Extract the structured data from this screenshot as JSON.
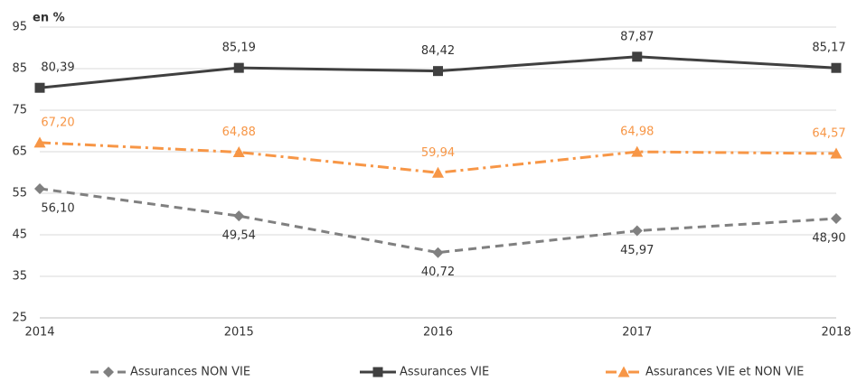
{
  "chart_data": {
    "type": "line",
    "ylabel": "en %",
    "categories": [
      "2014",
      "2015",
      "2016",
      "2017",
      "2018"
    ],
    "ylim": [
      25,
      95
    ],
    "yticks": [
      25,
      35,
      45,
      55,
      65,
      75,
      85,
      95
    ],
    "grid": true,
    "series": [
      {
        "name": "Assurances NON VIE",
        "color": "#808080",
        "dash": "dashed",
        "marker": "diamond",
        "values": [
          56.1,
          49.54,
          40.72,
          45.97,
          48.9
        ],
        "value_labels": [
          "56,10",
          "49,54",
          "40,72",
          "45,97",
          "48,90"
        ]
      },
      {
        "name": "Assurances VIE",
        "color": "#404040",
        "dash": "solid",
        "marker": "square",
        "values": [
          80.39,
          85.19,
          84.42,
          87.87,
          85.17
        ],
        "value_labels": [
          "80,39",
          "85,19",
          "84,42",
          "87,87",
          "85,17"
        ]
      },
      {
        "name": "Assurances VIE et NON VIE",
        "color": "#f79646",
        "dash": "dashdot",
        "marker": "triangle",
        "values": [
          67.2,
          64.88,
          59.94,
          64.98,
          64.57
        ],
        "value_labels": [
          "67,20",
          "64,88",
          "59,94",
          "64,98",
          "64,57"
        ]
      }
    ]
  }
}
